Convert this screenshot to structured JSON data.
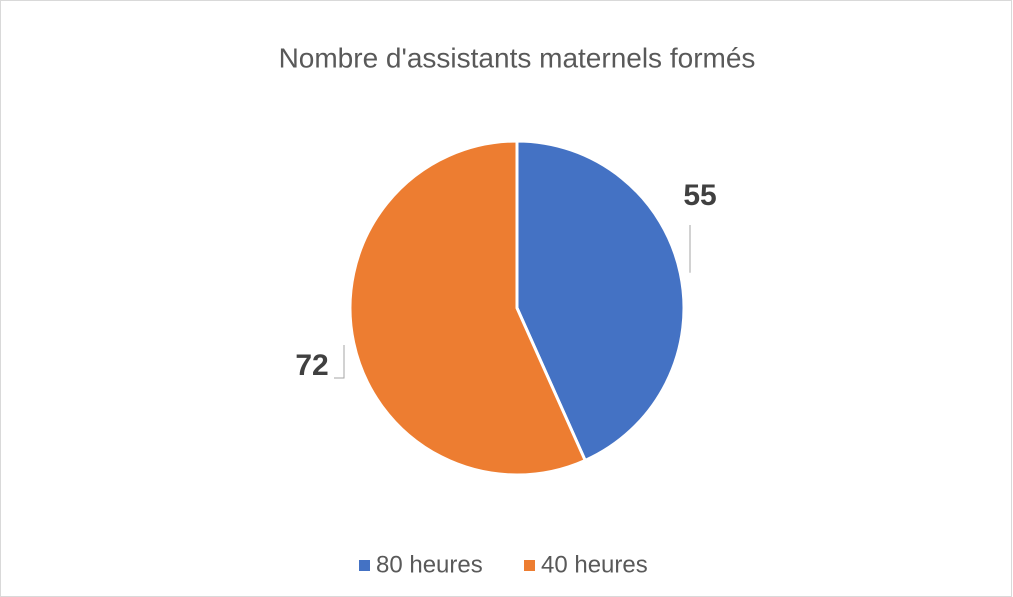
{
  "chart_data": {
    "type": "pie",
    "title": "Nombre d'assistants maternels formés",
    "categories": [
      "80 heures",
      "40 heures"
    ],
    "values": [
      55,
      72
    ],
    "colors": [
      "#4472c4",
      "#ed7d31"
    ],
    "legend": "bottom"
  }
}
